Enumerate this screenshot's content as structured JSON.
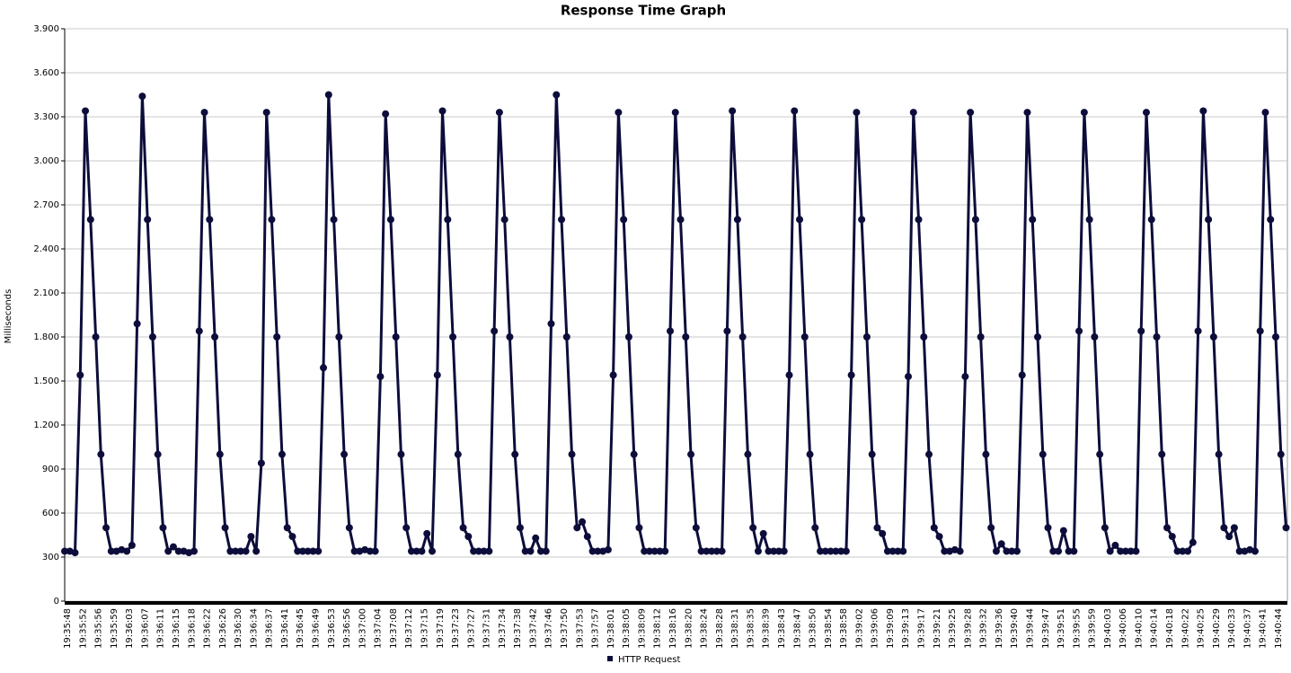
{
  "chart_data": {
    "type": "line",
    "title": "Response Time Graph",
    "y_label": "Milliseconds",
    "ylim": [
      0,
      3900
    ],
    "yticks": [
      0,
      300,
      600,
      900,
      {
        "value": 1200,
        "label": "1.200"
      },
      {
        "value": 1500,
        "label": "1.500"
      },
      {
        "value": 1800,
        "label": "1.800"
      },
      {
        "value": 2100,
        "label": "2.100"
      },
      {
        "value": 2400,
        "label": "2.400"
      },
      {
        "value": 2700,
        "label": "2.700"
      },
      {
        "value": 3000,
        "label": "3.000"
      },
      {
        "value": 3300,
        "label": "3.300"
      },
      {
        "value": 3600,
        "label": "3.600"
      },
      {
        "value": 3900,
        "label": "3.900"
      }
    ],
    "grid": true,
    "legend": "bottom",
    "categories": [
      "19:35:48",
      null,
      null,
      "19:35:52",
      null,
      null,
      "19:35:56",
      null,
      null,
      "19:35:59",
      null,
      null,
      "19:36:03",
      null,
      null,
      "19:36:07",
      null,
      null,
      "19:36:11",
      null,
      null,
      "19:36:15",
      null,
      null,
      "19:36:18",
      null,
      null,
      "19:36:22",
      null,
      null,
      "19:36:26",
      null,
      null,
      "19:36:30",
      null,
      null,
      "19:36:34",
      null,
      null,
      "19:36:37",
      null,
      null,
      "19:36:41",
      null,
      null,
      "19:36:45",
      null,
      null,
      "19:36:49",
      null,
      null,
      "19:36:53",
      null,
      null,
      "19:36:56",
      null,
      null,
      "19:37:00",
      null,
      null,
      "19:37:04",
      null,
      null,
      "19:37:08",
      null,
      null,
      "19:37:12",
      null,
      null,
      "19:37:15",
      null,
      null,
      "19:37:19",
      null,
      null,
      "19:37:23",
      null,
      null,
      "19:37:27",
      null,
      null,
      "19:37:31",
      null,
      null,
      "19:37:34",
      null,
      null,
      "19:37:38",
      null,
      null,
      "19:37:42",
      null,
      null,
      "19:37:46",
      null,
      null,
      "19:37:50",
      null,
      null,
      "19:37:53",
      null,
      null,
      "19:37:57",
      null,
      null,
      "19:38:01",
      null,
      null,
      "19:38:05",
      null,
      null,
      "19:38:09",
      null,
      null,
      "19:38:12",
      null,
      null,
      "19:38:16",
      null,
      null,
      "19:38:20",
      null,
      null,
      "19:38:24",
      null,
      null,
      "19:38:28",
      null,
      null,
      "19:38:31",
      null,
      null,
      "19:38:35",
      null,
      null,
      "19:38:39",
      null,
      null,
      "19:38:43",
      null,
      null,
      "19:38:47",
      null,
      null,
      "19:38:50",
      null,
      null,
      "19:38:54",
      null,
      null,
      "19:38:58",
      null,
      null,
      "19:39:02",
      null,
      null,
      "19:39:06",
      null,
      null,
      "19:39:09",
      null,
      null,
      "19:39:13",
      null,
      null,
      "19:39:17",
      null,
      null,
      "19:39:21",
      null,
      null,
      "19:39:25",
      null,
      null,
      "19:39:28",
      null,
      null,
      "19:39:32",
      null,
      null,
      "19:39:36",
      null,
      null,
      "19:39:40",
      null,
      null,
      "19:39:44",
      null,
      null,
      "19:39:47",
      null,
      null,
      "19:39:51",
      null,
      null,
      "19:39:55",
      null,
      null,
      "19:39:59",
      null,
      null,
      "19:40:03",
      null,
      null,
      "19:40:06",
      null,
      null,
      "19:40:10",
      null,
      null,
      "19:40:14",
      null,
      null,
      "19:40:18",
      null,
      null,
      "19:40:22",
      null,
      null,
      "19:40:25",
      null,
      null,
      "19:40:29",
      null,
      null,
      "19:40:33",
      null,
      null,
      "19:40:37",
      null,
      null,
      "19:40:41",
      null,
      null,
      "19:40:44",
      null,
      null
    ],
    "series": [
      {
        "name": "HTTP Request",
        "color": "#0d0d3b",
        "values": [
          340,
          340,
          330,
          1540,
          3340,
          2600,
          1800,
          1000,
          500,
          340,
          340,
          350,
          340,
          380,
          1890,
          3440,
          2600,
          1800,
          1000,
          500,
          340,
          370,
          340,
          340,
          330,
          340,
          1840,
          3330,
          2600,
          1800,
          1000,
          500,
          340,
          340,
          340,
          340,
          440,
          340,
          940,
          3330,
          2600,
          1800,
          1000,
          500,
          440,
          340,
          340,
          340,
          340,
          340,
          1590,
          3450,
          2600,
          1800,
          1000,
          500,
          340,
          340,
          350,
          340,
          340,
          1530,
          3320,
          2600,
          1800,
          1000,
          500,
          340,
          340,
          340,
          460,
          340,
          1540,
          3340,
          2600,
          1800,
          1000,
          500,
          440,
          340,
          340,
          340,
          340,
          1840,
          3330,
          2600,
          1800,
          1000,
          500,
          340,
          340,
          430,
          340,
          340,
          1890,
          3450,
          2600,
          1800,
          1000,
          500,
          540,
          440,
          340,
          340,
          340,
          350,
          1540,
          3330,
          2600,
          1800,
          1000,
          500,
          340,
          340,
          340,
          340,
          340,
          1840,
          3330,
          2600,
          1800,
          1000,
          500,
          340,
          340,
          340,
          340,
          340,
          1840,
          3340,
          2600,
          1800,
          1000,
          500,
          340,
          460,
          340,
          340,
          340,
          340,
          1540,
          3340,
          2600,
          1800,
          1000,
          500,
          340,
          340,
          340,
          340,
          340,
          340,
          1540,
          3330,
          2600,
          1800,
          1000,
          500,
          460,
          340,
          340,
          340,
          340,
          1530,
          3330,
          2600,
          1800,
          1000,
          500,
          440,
          340,
          340,
          350,
          340,
          1530,
          3330,
          2600,
          1800,
          1000,
          500,
          340,
          390,
          340,
          340,
          340,
          1540,
          3330,
          2600,
          1800,
          1000,
          500,
          340,
          340,
          480,
          340,
          340,
          1840,
          3330,
          2600,
          1800,
          1000,
          500,
          340,
          380,
          340,
          340,
          340,
          340,
          1840,
          3330,
          2600,
          1800,
          1000,
          500,
          440,
          340,
          340,
          340,
          400,
          1840,
          3340,
          2600,
          1800,
          1000,
          500,
          440,
          500,
          340,
          340,
          350,
          340,
          1840,
          3330,
          2600,
          1800,
          1000,
          500
        ]
      }
    ]
  }
}
